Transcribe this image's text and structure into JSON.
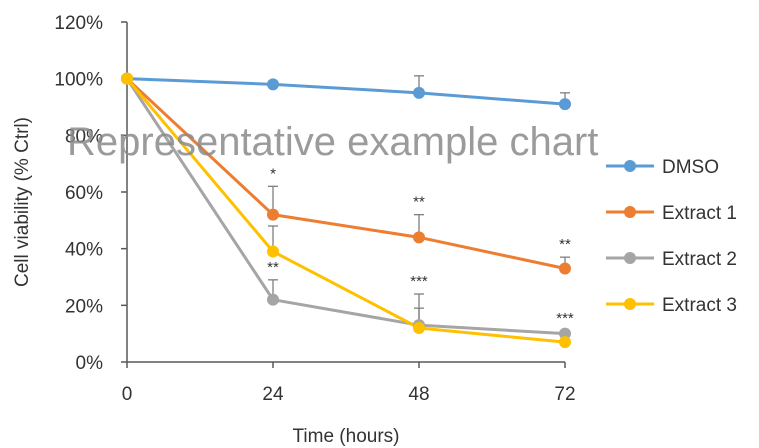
{
  "chart_data": {
    "type": "line",
    "xlabel": "Time (hours)",
    "ylabel": "Cell viability (% Ctrl)",
    "x": [
      0,
      24,
      48,
      72
    ],
    "x_tick_labels": [
      "0",
      "24",
      "48",
      "72"
    ],
    "xlim": [
      0,
      72
    ],
    "ylim": [
      0,
      120
    ],
    "y_ticks": [
      0,
      20,
      40,
      60,
      80,
      100,
      120
    ],
    "y_tick_labels": [
      "0%",
      "20%",
      "40%",
      "60%",
      "80%",
      "100%",
      "120%"
    ],
    "grid": false,
    "legend_position": "right",
    "watermark": "Representative example chart",
    "series": [
      {
        "name": "DMSO",
        "color": "#5B9BD5",
        "values": [
          100,
          98,
          95,
          91
        ],
        "errors": [
          0,
          1,
          6,
          4
        ],
        "significance": [
          "",
          "",
          "",
          ""
        ]
      },
      {
        "name": "Extract 1",
        "color": "#ED7D31",
        "values": [
          100,
          52,
          44,
          33
        ],
        "errors": [
          0,
          10,
          8,
          4
        ],
        "significance": [
          "",
          "*",
          "**",
          "**"
        ]
      },
      {
        "name": "Extract 2",
        "color": "#A5A5A5",
        "values": [
          100,
          22,
          13,
          10
        ],
        "errors": [
          0,
          7,
          11,
          1
        ],
        "significance": [
          "",
          "**",
          "***",
          "***"
        ]
      },
      {
        "name": "Extract 3",
        "color": "#FFC000",
        "values": [
          100,
          39,
          12,
          7
        ],
        "errors": [
          0,
          9,
          7,
          1
        ],
        "significance": [
          "",
          "",
          "",
          ""
        ]
      }
    ]
  }
}
